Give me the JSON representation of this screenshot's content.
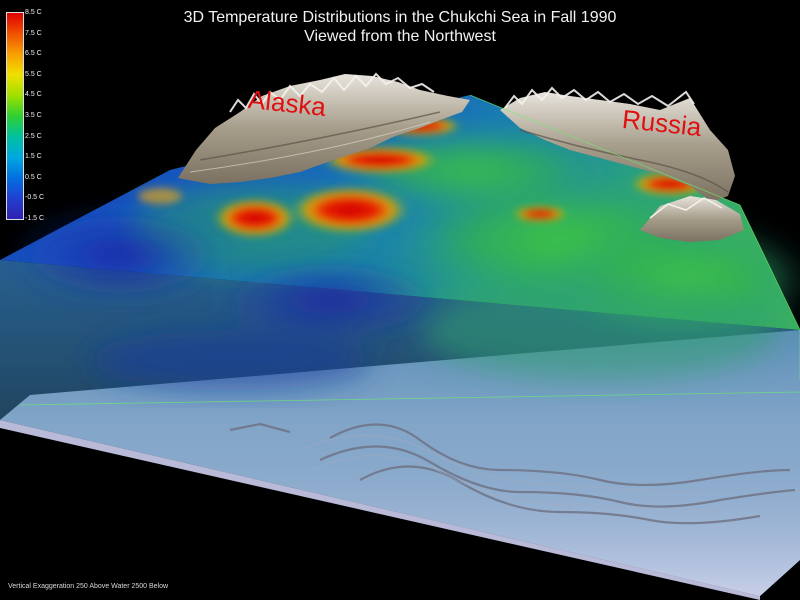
{
  "title": {
    "line1": "3D Temperature Distributions in the Chukchi Sea in Fall 1990",
    "line2": "Viewed from the Northwest"
  },
  "legend": {
    "ticks": [
      "8.5 C",
      "7.5 C",
      "6.5 C",
      "5.5 C",
      "4.5 C",
      "3.5 C",
      "2.5 C",
      "1.5 C",
      "0.5 C",
      "-0.5 C",
      "-1.5 C"
    ],
    "colors": [
      "#e00000",
      "#f05000",
      "#f8a000",
      "#f0e000",
      "#a0e000",
      "#30d030",
      "#00c0a0",
      "#00a8e0",
      "#0070e0",
      "#2040d0",
      "#3020b0"
    ]
  },
  "labels": {
    "alaska": "Alaska",
    "russia": "Russia"
  },
  "footer": "Vertical Exaggeration 250 Above Water 2500 Below",
  "colors": {
    "background": "#000000",
    "label_red": "#e01010",
    "base_slab": "#d4d4f0"
  }
}
